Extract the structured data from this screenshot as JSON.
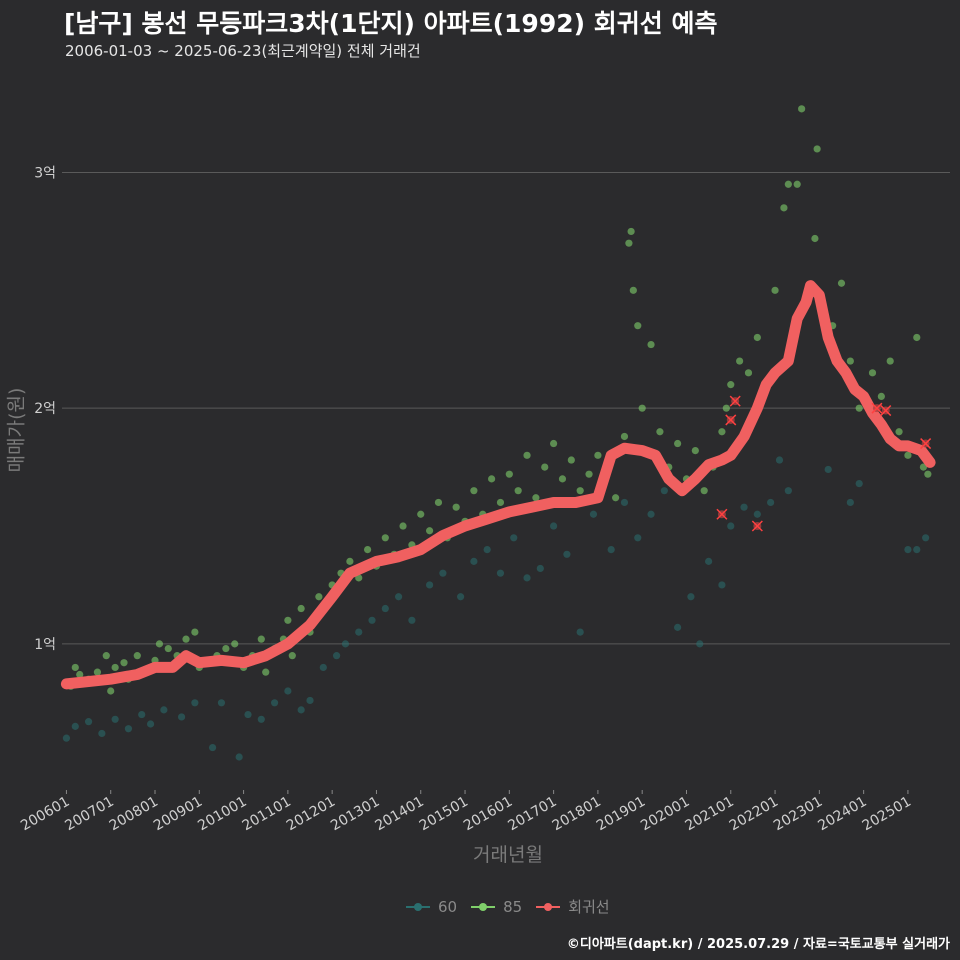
{
  "title": "[남구] 봉선 무등파크3차(1단지) 아파트(1992) 회귀선 예측",
  "subtitle": "2006-01-03 ~ 2025-06-23(최근계약일) 전체 거래건",
  "caption": "©디아파트(dapt.kr) / 2025.07.29 / 자료=국토교통부 실거래가",
  "colors": {
    "background": "#2b2b2d",
    "grid": "#5a5a5a",
    "series_60": "#2a6f6f",
    "series_85": "#7fcf6a",
    "regression": "#f06060"
  },
  "legend": [
    {
      "label": "60",
      "color": "#2a6f6f"
    },
    {
      "label": "85",
      "color": "#7fcf6a"
    },
    {
      "label": "회귀선",
      "color": "#f06060"
    }
  ],
  "chart_data": {
    "type": "scatter",
    "xlabel": "거래년월",
    "ylabel": "매매가(원)",
    "x_ticks": [
      "200601",
      "200701",
      "200801",
      "200901",
      "201001",
      "201101",
      "201201",
      "201301",
      "201401",
      "201501",
      "201601",
      "201701",
      "201801",
      "201901",
      "202001",
      "202101",
      "202201",
      "202301",
      "202401",
      "202501"
    ],
    "xlim": [
      2005.9,
      2025.95
    ],
    "y_ticks": [
      {
        "value": 1,
        "label": "1억"
      },
      {
        "value": 2,
        "label": "2억"
      },
      {
        "value": 3,
        "label": "3억"
      }
    ],
    "ylim": [
      0.38,
      3.35
    ],
    "y_unit": "억원",
    "grid": "horizontal",
    "legend_position": "bottom",
    "series": [
      {
        "name": "60",
        "points": [
          [
            2006.0,
            0.6
          ],
          [
            2006.2,
            0.65
          ],
          [
            2006.5,
            0.67
          ],
          [
            2006.8,
            0.62
          ],
          [
            2007.1,
            0.68
          ],
          [
            2007.4,
            0.64
          ],
          [
            2007.7,
            0.7
          ],
          [
            2007.9,
            0.66
          ],
          [
            2008.2,
            0.72
          ],
          [
            2008.6,
            0.69
          ],
          [
            2008.9,
            0.75
          ],
          [
            2009.3,
            0.56
          ],
          [
            2009.5,
            0.75
          ],
          [
            2009.9,
            0.52
          ],
          [
            2010.1,
            0.7
          ],
          [
            2010.4,
            0.68
          ],
          [
            2010.7,
            0.75
          ],
          [
            2011.0,
            0.8
          ],
          [
            2011.3,
            0.72
          ],
          [
            2011.5,
            0.76
          ],
          [
            2011.8,
            0.9
          ],
          [
            2012.1,
            0.95
          ],
          [
            2012.3,
            1.0
          ],
          [
            2012.6,
            1.05
          ],
          [
            2012.9,
            1.1
          ],
          [
            2013.2,
            1.15
          ],
          [
            2013.5,
            1.2
          ],
          [
            2013.8,
            1.1
          ],
          [
            2014.2,
            1.25
          ],
          [
            2014.5,
            1.3
          ],
          [
            2014.9,
            1.2
          ],
          [
            2015.2,
            1.35
          ],
          [
            2015.5,
            1.4
          ],
          [
            2015.8,
            1.3
          ],
          [
            2016.1,
            1.45
          ],
          [
            2016.4,
            1.28
          ],
          [
            2016.7,
            1.32
          ],
          [
            2017.0,
            1.5
          ],
          [
            2017.3,
            1.38
          ],
          [
            2017.6,
            1.05
          ],
          [
            2017.9,
            1.55
          ],
          [
            2018.3,
            1.4
          ],
          [
            2018.6,
            1.6
          ],
          [
            2018.9,
            1.45
          ],
          [
            2019.2,
            1.55
          ],
          [
            2019.5,
            1.65
          ],
          [
            2019.8,
            1.07
          ],
          [
            2020.1,
            1.2
          ],
          [
            2020.3,
            1.0
          ],
          [
            2020.5,
            1.35
          ],
          [
            2020.8,
            1.25
          ],
          [
            2021.0,
            1.5
          ],
          [
            2021.3,
            1.58
          ],
          [
            2021.6,
            1.55
          ],
          [
            2021.9,
            1.6
          ],
          [
            2022.1,
            1.78
          ],
          [
            2022.3,
            1.65
          ],
          [
            2023.2,
            1.74
          ],
          [
            2023.7,
            1.6
          ],
          [
            2023.9,
            1.68
          ],
          [
            2025.0,
            1.4
          ],
          [
            2025.2,
            1.4
          ],
          [
            2025.4,
            1.45
          ]
        ]
      },
      {
        "name": "85",
        "points": [
          [
            2006.1,
            0.82
          ],
          [
            2006.2,
            0.9
          ],
          [
            2006.3,
            0.87
          ],
          [
            2006.5,
            0.85
          ],
          [
            2006.7,
            0.88
          ],
          [
            2006.9,
            0.95
          ],
          [
            2007.0,
            0.8
          ],
          [
            2007.1,
            0.9
          ],
          [
            2007.3,
            0.92
          ],
          [
            2007.4,
            0.85
          ],
          [
            2007.6,
            0.95
          ],
          [
            2007.8,
            0.88
          ],
          [
            2008.0,
            0.93
          ],
          [
            2008.1,
            1.0
          ],
          [
            2008.3,
            0.98
          ],
          [
            2008.5,
            0.95
          ],
          [
            2008.7,
            1.02
          ],
          [
            2008.9,
            1.05
          ],
          [
            2009.0,
            0.9
          ],
          [
            2009.2,
            0.92
          ],
          [
            2009.4,
            0.95
          ],
          [
            2009.6,
            0.98
          ],
          [
            2009.8,
            1.0
          ],
          [
            2010.0,
            0.9
          ],
          [
            2010.2,
            0.95
          ],
          [
            2010.4,
            1.02
          ],
          [
            2010.5,
            0.88
          ],
          [
            2010.7,
            0.98
          ],
          [
            2010.9,
            1.02
          ],
          [
            2011.0,
            1.1
          ],
          [
            2011.1,
            0.95
          ],
          [
            2011.3,
            1.15
          ],
          [
            2011.5,
            1.05
          ],
          [
            2011.7,
            1.2
          ],
          [
            2011.9,
            1.18
          ],
          [
            2012.0,
            1.25
          ],
          [
            2012.2,
            1.3
          ],
          [
            2012.4,
            1.35
          ],
          [
            2012.6,
            1.28
          ],
          [
            2012.8,
            1.4
          ],
          [
            2013.0,
            1.33
          ],
          [
            2013.2,
            1.45
          ],
          [
            2013.4,
            1.38
          ],
          [
            2013.6,
            1.5
          ],
          [
            2013.8,
            1.42
          ],
          [
            2014.0,
            1.55
          ],
          [
            2014.2,
            1.48
          ],
          [
            2014.4,
            1.6
          ],
          [
            2014.6,
            1.45
          ],
          [
            2014.8,
            1.58
          ],
          [
            2015.0,
            1.52
          ],
          [
            2015.2,
            1.65
          ],
          [
            2015.4,
            1.55
          ],
          [
            2015.6,
            1.7
          ],
          [
            2015.8,
            1.6
          ],
          [
            2016.0,
            1.72
          ],
          [
            2016.2,
            1.65
          ],
          [
            2016.4,
            1.8
          ],
          [
            2016.6,
            1.62
          ],
          [
            2016.8,
            1.75
          ],
          [
            2017.0,
            1.85
          ],
          [
            2017.2,
            1.7
          ],
          [
            2017.4,
            1.78
          ],
          [
            2017.6,
            1.65
          ],
          [
            2017.8,
            1.72
          ],
          [
            2018.0,
            1.8
          ],
          [
            2018.2,
            1.75
          ],
          [
            2018.4,
            1.62
          ],
          [
            2018.6,
            1.88
          ],
          [
            2018.7,
            2.7
          ],
          [
            2018.75,
            2.75
          ],
          [
            2018.8,
            2.5
          ],
          [
            2018.9,
            2.35
          ],
          [
            2019.0,
            2.0
          ],
          [
            2019.2,
            2.27
          ],
          [
            2019.4,
            1.9
          ],
          [
            2019.6,
            1.75
          ],
          [
            2019.8,
            1.85
          ],
          [
            2020.0,
            1.7
          ],
          [
            2020.2,
            1.82
          ],
          [
            2020.4,
            1.65
          ],
          [
            2020.6,
            1.75
          ],
          [
            2020.8,
            1.9
          ],
          [
            2020.9,
            2.0
          ],
          [
            2021.0,
            2.1
          ],
          [
            2021.2,
            2.2
          ],
          [
            2021.4,
            2.15
          ],
          [
            2021.6,
            2.3
          ],
          [
            2021.8,
            2.1
          ],
          [
            2022.0,
            2.5
          ],
          [
            2022.2,
            2.85
          ],
          [
            2022.3,
            2.95
          ],
          [
            2022.5,
            2.95
          ],
          [
            2022.6,
            3.27
          ],
          [
            2022.9,
            2.72
          ],
          [
            2022.95,
            3.1
          ],
          [
            2023.3,
            2.35
          ],
          [
            2023.5,
            2.53
          ],
          [
            2023.7,
            2.2
          ],
          [
            2023.9,
            2.0
          ],
          [
            2024.2,
            2.15
          ],
          [
            2024.4,
            2.05
          ],
          [
            2024.6,
            2.2
          ],
          [
            2024.8,
            1.9
          ],
          [
            2025.0,
            1.8
          ],
          [
            2025.2,
            2.3
          ],
          [
            2025.35,
            1.75
          ],
          [
            2025.45,
            1.72
          ]
        ]
      }
    ],
    "regression": {
      "name": "회귀선",
      "points": [
        [
          2006.0,
          0.83
        ],
        [
          2007.0,
          0.85
        ],
        [
          2007.6,
          0.87
        ],
        [
          2008.0,
          0.9
        ],
        [
          2008.4,
          0.9
        ],
        [
          2008.7,
          0.95
        ],
        [
          2009.0,
          0.92
        ],
        [
          2009.5,
          0.93
        ],
        [
          2010.0,
          0.92
        ],
        [
          2010.5,
          0.95
        ],
        [
          2011.0,
          1.0
        ],
        [
          2011.5,
          1.08
        ],
        [
          2012.0,
          1.2
        ],
        [
          2012.4,
          1.3
        ],
        [
          2013.0,
          1.35
        ],
        [
          2013.5,
          1.37
        ],
        [
          2014.0,
          1.4
        ],
        [
          2014.5,
          1.46
        ],
        [
          2015.0,
          1.5
        ],
        [
          2015.5,
          1.53
        ],
        [
          2016.0,
          1.56
        ],
        [
          2016.5,
          1.58
        ],
        [
          2017.0,
          1.6
        ],
        [
          2017.5,
          1.6
        ],
        [
          2018.0,
          1.62
        ],
        [
          2018.3,
          1.8
        ],
        [
          2018.6,
          1.83
        ],
        [
          2019.0,
          1.82
        ],
        [
          2019.3,
          1.8
        ],
        [
          2019.6,
          1.7
        ],
        [
          2019.9,
          1.65
        ],
        [
          2020.2,
          1.7
        ],
        [
          2020.5,
          1.76
        ],
        [
          2020.8,
          1.78
        ],
        [
          2021.0,
          1.8
        ],
        [
          2021.3,
          1.88
        ],
        [
          2021.6,
          2.0
        ],
        [
          2021.8,
          2.1
        ],
        [
          2022.0,
          2.15
        ],
        [
          2022.3,
          2.2
        ],
        [
          2022.5,
          2.38
        ],
        [
          2022.7,
          2.45
        ],
        [
          2022.8,
          2.52
        ],
        [
          2023.0,
          2.48
        ],
        [
          2023.2,
          2.3
        ],
        [
          2023.4,
          2.2
        ],
        [
          2023.6,
          2.15
        ],
        [
          2023.8,
          2.08
        ],
        [
          2024.0,
          2.05
        ],
        [
          2024.2,
          1.98
        ],
        [
          2024.4,
          1.93
        ],
        [
          2024.6,
          1.87
        ],
        [
          2024.8,
          1.84
        ],
        [
          2025.0,
          1.84
        ],
        [
          2025.3,
          1.82
        ],
        [
          2025.5,
          1.77
        ]
      ]
    },
    "flagged_points": [
      [
        2020.8,
        1.55
      ],
      [
        2021.0,
        1.95
      ],
      [
        2021.1,
        2.03
      ],
      [
        2021.6,
        1.5
      ],
      [
        2024.3,
        2.0
      ],
      [
        2024.5,
        1.99
      ],
      [
        2025.4,
        1.85
      ]
    ]
  }
}
